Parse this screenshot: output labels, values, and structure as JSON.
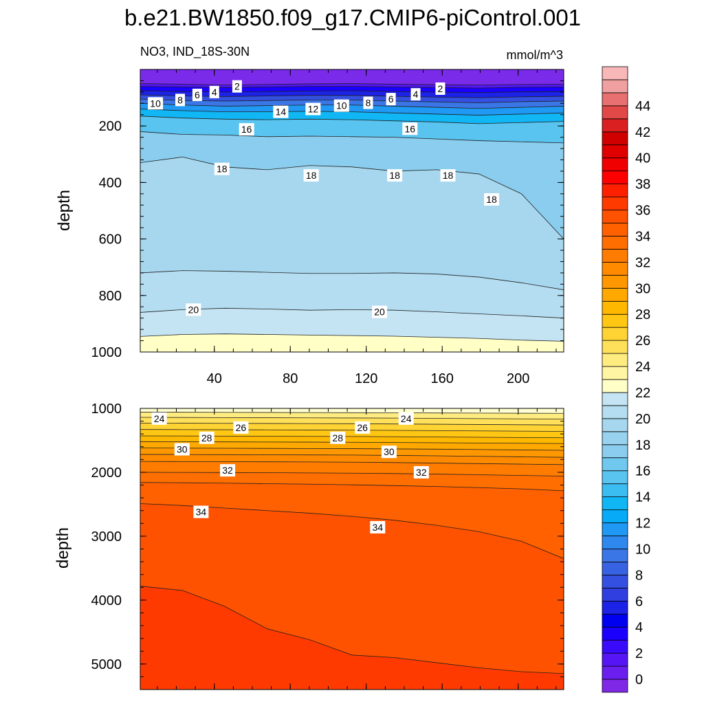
{
  "chart_data": [
    {
      "type": "contour",
      "title": "b.e21.BW1850.f09_g17.CMIP6-piControl.001",
      "subtitle_left": "NO3, IND_18S-30N",
      "subtitle_right": "mmol/m^3",
      "panel": "upper",
      "ylabel": "depth",
      "xlim": [
        1,
        224
      ],
      "ylim": [
        0,
        1000
      ],
      "y_reversed": true,
      "xticks": [
        40,
        80,
        120,
        160,
        200
      ],
      "yticks": [
        200,
        400,
        600,
        800,
        1000
      ],
      "contours": [
        {
          "level": 0,
          "depth": [
            50,
            52,
            55,
            53,
            51,
            50,
            52,
            54,
            55,
            53,
            52
          ]
        },
        {
          "level": 2,
          "depth": [
            60,
            62,
            64,
            62,
            60,
            60,
            62,
            64,
            66,
            63,
            62
          ]
        },
        {
          "level": 4,
          "depth": [
            75,
            78,
            80,
            78,
            76,
            75,
            78,
            80,
            82,
            79,
            78
          ]
        },
        {
          "level": 6,
          "depth": [
            90,
            94,
            96,
            94,
            92,
            92,
            95,
            98,
            100,
            97,
            95
          ]
        },
        {
          "level": 8,
          "depth": [
            105,
            110,
            112,
            110,
            108,
            108,
            112,
            115,
            118,
            114,
            112
          ]
        },
        {
          "level": 10,
          "depth": [
            120,
            126,
            130,
            128,
            126,
            126,
            130,
            134,
            138,
            134,
            130
          ]
        },
        {
          "level": 12,
          "depth": [
            140,
            146,
            150,
            150,
            148,
            150,
            154,
            158,
            162,
            158,
            154
          ]
        },
        {
          "level": 14,
          "depth": [
            165,
            172,
            176,
            178,
            176,
            178,
            182,
            186,
            192,
            188,
            184
          ]
        },
        {
          "level": 16,
          "depth": [
            220,
            230,
            232,
            238,
            236,
            238,
            240,
            246,
            252,
            256,
            260
          ]
        },
        {
          "level": 18,
          "depth": [
            330,
            310,
            345,
            355,
            340,
            345,
            360,
            355,
            370,
            440,
            600
          ]
        },
        {
          "level": 19,
          "depth": [
            720,
            712,
            714,
            718,
            722,
            722,
            720,
            724,
            735,
            755,
            780
          ]
        },
        {
          "level": 20,
          "depth": [
            860,
            850,
            845,
            848,
            852,
            850,
            852,
            858,
            865,
            872,
            880
          ]
        },
        {
          "level": 21,
          "depth": [
            945,
            938,
            936,
            938,
            940,
            942,
            944,
            948,
            952,
            958,
            962
          ]
        }
      ],
      "labels": [
        {
          "text": "2",
          "x": 52,
          "depth": 60
        },
        {
          "text": "4",
          "x": 40,
          "depth": 80
        },
        {
          "text": "6",
          "x": 31,
          "depth": 90
        },
        {
          "text": "8",
          "x": 22,
          "depth": 108
        },
        {
          "text": "10",
          "x": 9,
          "depth": 120
        },
        {
          "text": "14",
          "x": 75,
          "depth": 150
        },
        {
          "text": "12",
          "x": 92,
          "depth": 140
        },
        {
          "text": "10",
          "x": 107,
          "depth": 128
        },
        {
          "text": "8",
          "x": 121,
          "depth": 118
        },
        {
          "text": "6",
          "x": 133,
          "depth": 105
        },
        {
          "text": "4",
          "x": 146,
          "depth": 88
        },
        {
          "text": "2",
          "x": 159,
          "depth": 68
        },
        {
          "text": "16",
          "x": 57,
          "depth": 212
        },
        {
          "text": "16",
          "x": 143,
          "depth": 210
        },
        {
          "text": "18",
          "x": 44,
          "depth": 352
        },
        {
          "text": "18",
          "x": 91,
          "depth": 375
        },
        {
          "text": "18",
          "x": 135,
          "depth": 375
        },
        {
          "text": "18",
          "x": 163,
          "depth": 375
        },
        {
          "text": "18",
          "x": 186,
          "depth": 460
        },
        {
          "text": "20",
          "x": 29,
          "depth": 850
        },
        {
          "text": "20",
          "x": 127,
          "depth": 858
        }
      ]
    },
    {
      "type": "contour",
      "panel": "lower",
      "ylabel": "depth",
      "xlim": [
        1,
        224
      ],
      "ylim": [
        1000,
        5400
      ],
      "y_reversed": true,
      "yticks": [
        1000,
        2000,
        3000,
        4000,
        5000
      ],
      "contours": [
        {
          "level": 23,
          "depth": [
            1060,
            1060,
            1062,
            1064,
            1066,
            1068,
            1070,
            1072,
            1074,
            1076,
            1078
          ]
        },
        {
          "level": 24,
          "depth": [
            1140,
            1142,
            1144,
            1146,
            1148,
            1150,
            1152,
            1156,
            1160,
            1164,
            1168
          ]
        },
        {
          "level": 25,
          "depth": [
            1230,
            1232,
            1234,
            1236,
            1238,
            1240,
            1244,
            1248,
            1252,
            1256,
            1260
          ]
        },
        {
          "level": 26,
          "depth": [
            1330,
            1332,
            1334,
            1336,
            1338,
            1340,
            1344,
            1348,
            1352,
            1356,
            1360
          ]
        },
        {
          "level": 27,
          "depth": [
            1430,
            1432,
            1434,
            1436,
            1438,
            1440,
            1444,
            1448,
            1452,
            1456,
            1460
          ]
        },
        {
          "level": 28,
          "depth": [
            1520,
            1522,
            1524,
            1526,
            1528,
            1530,
            1534,
            1538,
            1542,
            1546,
            1550
          ]
        },
        {
          "level": 29,
          "depth": [
            1620,
            1622,
            1624,
            1626,
            1628,
            1630,
            1634,
            1638,
            1644,
            1650,
            1656
          ]
        },
        {
          "level": 30,
          "depth": [
            1720,
            1722,
            1724,
            1726,
            1728,
            1730,
            1736,
            1742,
            1750,
            1758,
            1766
          ]
        },
        {
          "level": 31,
          "depth": [
            1830,
            1832,
            1834,
            1836,
            1838,
            1842,
            1848,
            1856,
            1864,
            1872,
            1880
          ]
        },
        {
          "level": 32,
          "depth": [
            2000,
            2002,
            2004,
            2006,
            2010,
            2014,
            2020,
            2028,
            2038,
            2050,
            2060
          ]
        },
        {
          "level": 33,
          "depth": [
            2160,
            2164,
            2170,
            2178,
            2186,
            2196,
            2208,
            2222,
            2240,
            2260,
            2290
          ]
        },
        {
          "level": 34,
          "depth": [
            2490,
            2520,
            2560,
            2600,
            2640,
            2690,
            2750,
            2830,
            2930,
            3080,
            3350
          ]
        },
        {
          "level": 35,
          "depth": [
            3780,
            3850,
            4100,
            4450,
            4620,
            4860,
            4900,
            4980,
            5060,
            5120,
            5150
          ]
        }
      ],
      "labels": [
        {
          "text": "24",
          "x": 11,
          "depth": 1160
        },
        {
          "text": "26",
          "x": 54,
          "depth": 1300
        },
        {
          "text": "28",
          "x": 36,
          "depth": 1460
        },
        {
          "text": "28",
          "x": 105,
          "depth": 1460
        },
        {
          "text": "26",
          "x": 118,
          "depth": 1300
        },
        {
          "text": "24",
          "x": 141,
          "depth": 1160
        },
        {
          "text": "30",
          "x": 23,
          "depth": 1640
        },
        {
          "text": "30",
          "x": 132,
          "depth": 1680
        },
        {
          "text": "32",
          "x": 47,
          "depth": 1970
        },
        {
          "text": "32",
          "x": 149,
          "depth": 2000
        },
        {
          "text": "34",
          "x": 33,
          "depth": 2620
        },
        {
          "text": "34",
          "x": 126,
          "depth": 2860
        }
      ]
    }
  ],
  "colorbar": {
    "levels": [
      -1,
      0,
      1,
      2,
      3,
      4,
      5,
      6,
      7,
      8,
      9,
      10,
      11,
      12,
      13,
      14,
      15,
      16,
      17,
      18,
      19,
      20,
      21,
      22,
      23,
      24,
      25,
      26,
      27,
      28,
      29,
      30,
      31,
      32,
      33,
      34,
      35,
      36,
      37,
      38,
      39,
      40,
      41,
      42,
      43,
      44,
      45,
      46
    ],
    "tick_labels": [
      "0",
      "2",
      "4",
      "6",
      "8",
      "10",
      "12",
      "14",
      "16",
      "18",
      "20",
      "22",
      "24",
      "26",
      "28",
      "30",
      "32",
      "34",
      "36",
      "38",
      "40",
      "42",
      "44"
    ],
    "colors": [
      "#7F28E6",
      "#6A1FEF",
      "#5515F5",
      "#3A0AFA",
      "#1A00FF",
      "#0000F0",
      "#1C22E6",
      "#2F3FE0",
      "#3450E0",
      "#3763E2",
      "#3A76E6",
      "#2F88EE",
      "#1F99F3",
      "#06AAF6",
      "#11B6F5",
      "#3BBDF2",
      "#5AC4F0",
      "#70C8EE",
      "#8ACDEE",
      "#98D2EE",
      "#A6D7EF",
      "#B4DDF1",
      "#C4E4F3",
      "#FFFFC6",
      "#FFF5A3",
      "#FFEC80",
      "#FFE05A",
      "#FFD333",
      "#FFC613",
      "#FFB800",
      "#FFA800",
      "#FF9800",
      "#FF8A00",
      "#FF7C00",
      "#FF6E00",
      "#FF6000",
      "#FF5200",
      "#FF3A00",
      "#FF2000",
      "#FF0000",
      "#F00000",
      "#E00000",
      "#D00000",
      "#DA2020",
      "#E14848",
      "#E87070",
      "#F0A0A0",
      "#F8B8B8"
    ]
  }
}
